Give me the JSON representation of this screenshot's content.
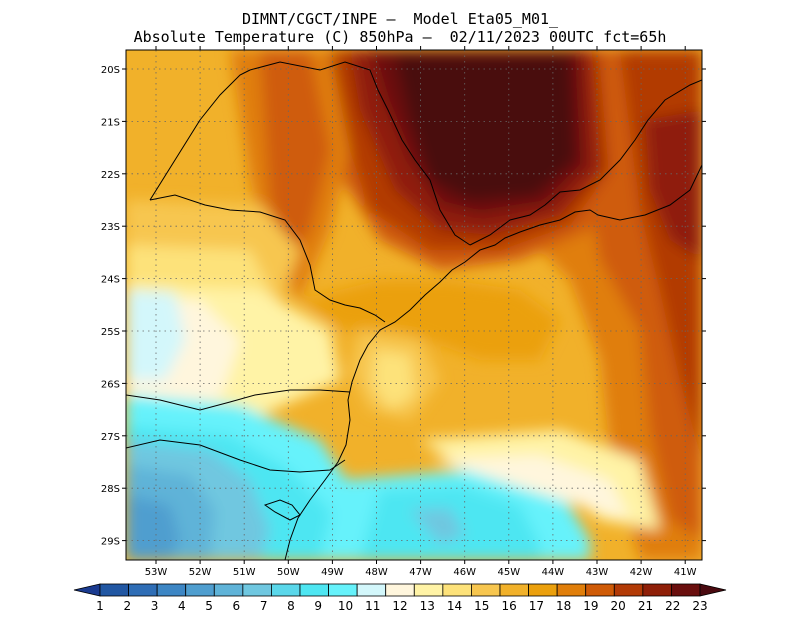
{
  "title": {
    "line1": "DIMNT/CGCT/INPE –  Model Eta05_M01_",
    "line2": "Absolute Temperature (C) 850hPa –  02/11/2023 00UTC fct=65h"
  },
  "map": {
    "lat_labels": [
      "20S",
      "21S",
      "22S",
      "23S",
      "24S",
      "25S",
      "26S",
      "27S",
      "28S",
      "29S"
    ],
    "lon_labels": [
      "53W",
      "52W",
      "51W",
      "50W",
      "49W",
      "48W",
      "47W",
      "46W",
      "45W",
      "44W",
      "43W",
      "42W",
      "41W"
    ],
    "gridlines": true
  },
  "colorbar": {
    "labels": [
      "1",
      "2",
      "3",
      "4",
      "5",
      "6",
      "7",
      "8",
      "9",
      "10",
      "11",
      "12",
      "13",
      "14",
      "15",
      "16",
      "17",
      "18",
      "19",
      "20",
      "21",
      "22",
      "23"
    ],
    "colors": [
      "#1a3a8f",
      "#2157a3",
      "#2e6db5",
      "#3d86c4",
      "#4f9ecf",
      "#5fb3d8",
      "#6fc7e0",
      "#5ad7ea",
      "#4ee6f2",
      "#66f2fb",
      "#d3f7fb",
      "#fff6dd",
      "#fff3a6",
      "#fde27a",
      "#f7c64f",
      "#f1b12a",
      "#eba00d",
      "#e07e0a",
      "#cf5b07",
      "#b23a06",
      "#8f1f08",
      "#6a0f0e",
      "#4a0a10"
    ]
  }
}
